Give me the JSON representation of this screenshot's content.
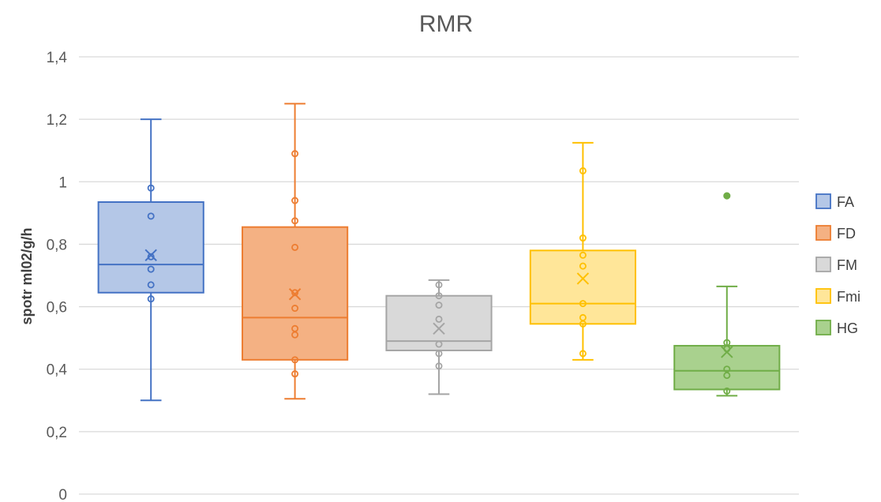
{
  "chart_data": {
    "type": "boxplot",
    "title": "RMR",
    "xlabel": "",
    "ylabel": "spotr ml02/g/h",
    "ylim": [
      0,
      1.4
    ],
    "yticks": [
      {
        "value": 0,
        "label": "0"
      },
      {
        "value": 0.2,
        "label": "0,2"
      },
      {
        "value": 0.4,
        "label": "0,4"
      },
      {
        "value": 0.6,
        "label": "0,6"
      },
      {
        "value": 0.8,
        "label": "0,8"
      },
      {
        "value": 1.0,
        "label": "1"
      },
      {
        "value": 1.2,
        "label": "1,2"
      },
      {
        "value": 1.4,
        "label": "1,4"
      }
    ],
    "grid": true,
    "legend_position": "right",
    "series": [
      {
        "name": "FA",
        "color": "#4472C4",
        "fill": "#B4C7E7",
        "whisker_low": 0.3,
        "q1": 0.645,
        "median": 0.735,
        "q3": 0.935,
        "whisker_high": 1.2,
        "mean": 0.765,
        "points": [
          0.98,
          0.89,
          0.76,
          0.72,
          0.67,
          0.625
        ],
        "outliers": []
      },
      {
        "name": "FD",
        "color": "#ED7D31",
        "fill": "#F4B183",
        "whisker_low": 0.305,
        "q1": 0.43,
        "median": 0.565,
        "q3": 0.855,
        "whisker_high": 1.25,
        "mean": 0.64,
        "points": [
          1.09,
          0.94,
          0.875,
          0.79,
          0.645,
          0.595,
          0.53,
          0.51,
          0.43,
          0.385
        ],
        "outliers": []
      },
      {
        "name": "FM",
        "color": "#A5A5A5",
        "fill": "#D9D9D9",
        "whisker_low": 0.32,
        "q1": 0.46,
        "median": 0.49,
        "q3": 0.635,
        "whisker_high": 0.685,
        "mean": 0.53,
        "points": [
          0.67,
          0.635,
          0.605,
          0.56,
          0.48,
          0.45,
          0.41
        ],
        "outliers": []
      },
      {
        "name": "Fmi",
        "color": "#FFC000",
        "fill": "#FFE699",
        "whisker_low": 0.43,
        "q1": 0.545,
        "median": 0.61,
        "q3": 0.78,
        "whisker_high": 1.125,
        "mean": 0.69,
        "points": [
          1.035,
          0.82,
          0.765,
          0.73,
          0.61,
          0.565,
          0.545,
          0.45
        ],
        "outliers": []
      },
      {
        "name": "HG",
        "color": "#70AD47",
        "fill": "#A9D18E",
        "whisker_low": 0.315,
        "q1": 0.335,
        "median": 0.395,
        "q3": 0.475,
        "whisker_high": 0.665,
        "mean": 0.455,
        "points": [
          0.485,
          0.465,
          0.4,
          0.38,
          0.33
        ],
        "outliers": [
          0.955
        ]
      }
    ]
  }
}
